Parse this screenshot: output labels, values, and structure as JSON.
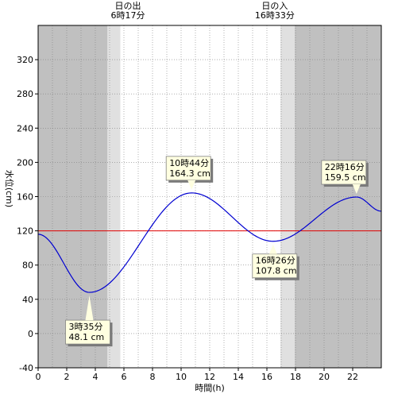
{
  "chart_data": {
    "type": "line",
    "xlabel": "時間(h)",
    "ylabel": "水位(cm)",
    "xlim": [
      0,
      24
    ],
    "ylim": [
      -40,
      360
    ],
    "x_ticks": [
      0,
      2,
      4,
      6,
      8,
      10,
      12,
      14,
      16,
      18,
      20,
      22
    ],
    "y_ticks": [
      -40,
      0,
      40,
      80,
      120,
      160,
      200,
      240,
      280,
      320
    ],
    "grid": true,
    "reference_line": {
      "y": 120,
      "color": "#e00000"
    },
    "series_color": "#0000d0",
    "sunrise": {
      "label": "日の出",
      "time_label": "6時17分",
      "hour": 6.28
    },
    "sunset": {
      "label": "日の入",
      "time_label": "16時33分",
      "hour": 16.55
    },
    "shading": {
      "night_color": "#c0c0c0",
      "twilight_color": "#e0e0e0",
      "morning_twilight": [
        4.85,
        5.75
      ],
      "evening_twilight": [
        16.95,
        17.95
      ]
    },
    "tide_points": [
      {
        "hour": 0.0,
        "cm": 116
      },
      {
        "hour": 3.583,
        "cm": 48.1
      },
      {
        "hour": 10.733,
        "cm": 164.3
      },
      {
        "hour": 16.433,
        "cm": 107.8
      },
      {
        "hour": 22.267,
        "cm": 159.5
      },
      {
        "hour": 24.0,
        "cm": 143
      }
    ],
    "annotations": [
      {
        "line1": "3時35分",
        "line2": "48.1 cm",
        "hour": 3.583,
        "cm": 48.1,
        "box": "below"
      },
      {
        "line1": "10時44分",
        "line2": "164.3 cm",
        "hour": 10.733,
        "cm": 164.3,
        "box": "above"
      },
      {
        "line1": "16時26分",
        "line2": "107.8 cm",
        "hour": 16.433,
        "cm": 107.8,
        "box": "below"
      },
      {
        "line1": "22時16分",
        "line2": "159.5 cm",
        "hour": 22.267,
        "cm": 159.5,
        "box": "above"
      }
    ]
  }
}
